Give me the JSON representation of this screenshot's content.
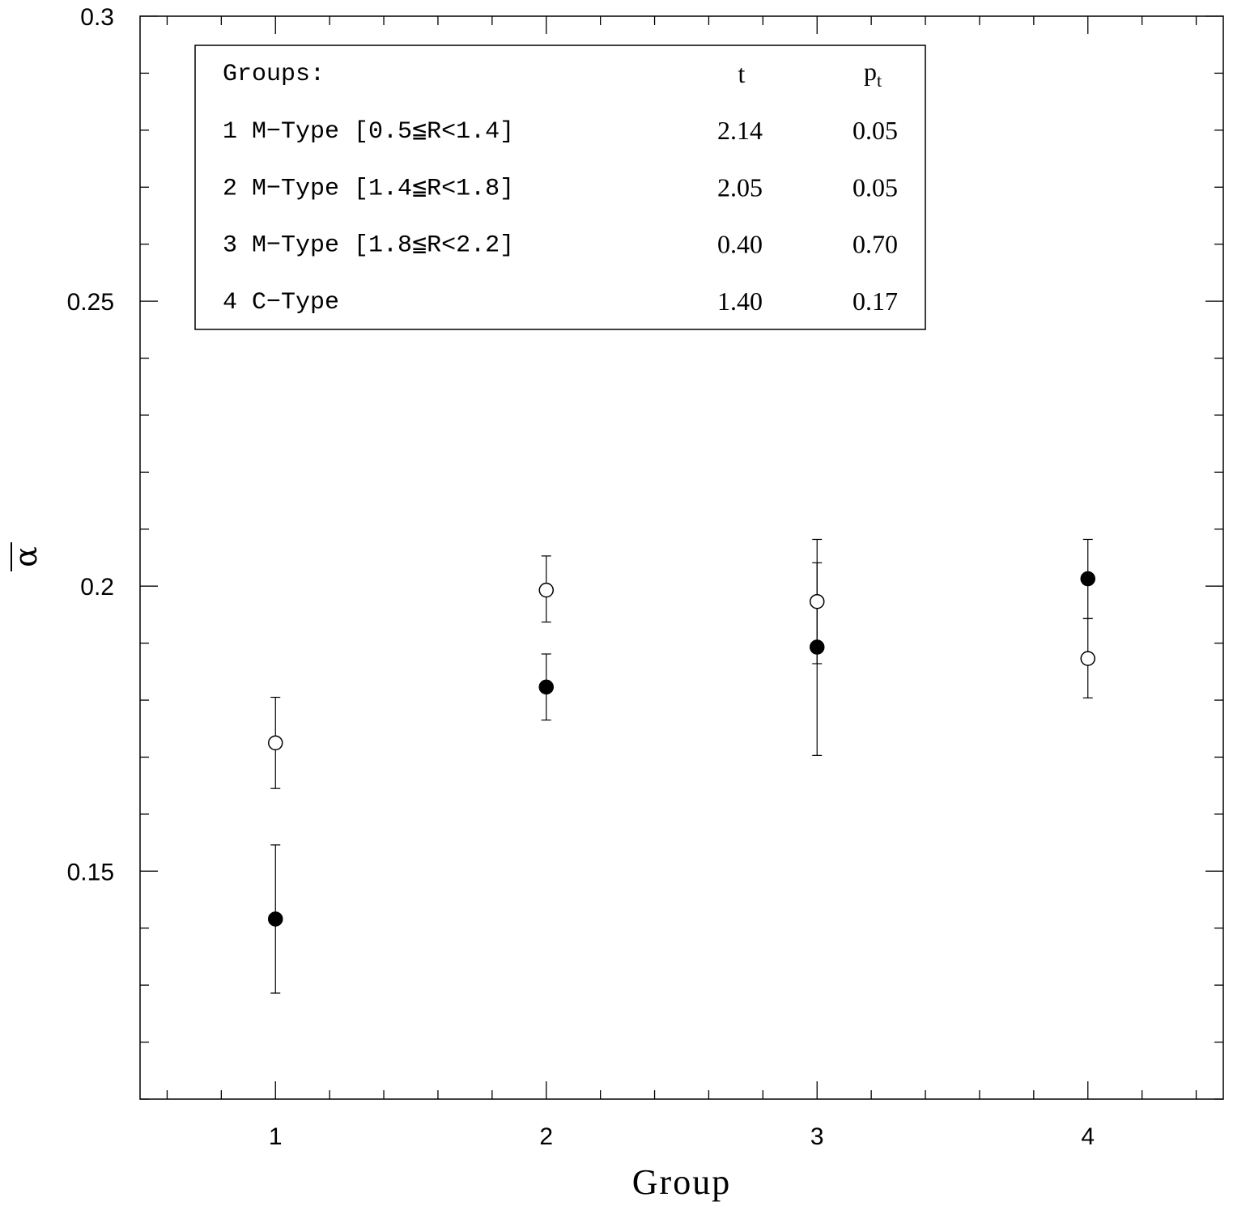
{
  "chart_data": {
    "type": "scatter",
    "xlabel": "Group",
    "ylabel": "α",
    "xlim": [
      0.5,
      4.5
    ],
    "ylim": [
      0.11,
      0.3
    ],
    "x_ticks": [
      "1",
      "2",
      "3",
      "4"
    ],
    "y_ticks": [
      "0.15",
      "0.2",
      "0.25",
      "0.3"
    ],
    "series": [
      {
        "marker": "open-circle",
        "points": [
          {
            "x": 1,
            "y": 0.1725,
            "err_low": 0.1645,
            "err_high": 0.1805
          },
          {
            "x": 2,
            "y": 0.1993,
            "err_low": 0.1937,
            "err_high": 0.2053
          },
          {
            "x": 3,
            "y": 0.1973,
            "err_low": 0.1864,
            "err_high": 0.2082
          },
          {
            "x": 4,
            "y": 0.1873,
            "err_low": 0.1804,
            "err_high": 0.1943
          }
        ]
      },
      {
        "marker": "filled-circle",
        "points": [
          {
            "x": 1,
            "y": 0.1416,
            "err_low": 0.1286,
            "err_high": 0.1546
          },
          {
            "x": 2,
            "y": 0.1823,
            "err_low": 0.1765,
            "err_high": 0.1881
          },
          {
            "x": 3,
            "y": 0.1893,
            "err_low": 0.1703,
            "err_high": 0.2041
          },
          {
            "x": 4,
            "y": 0.2013,
            "err_low": 0.1943,
            "err_high": 0.2082
          }
        ]
      }
    ],
    "legend": {
      "placement": "top-left",
      "header": {
        "label": "Groups:",
        "t": "t",
        "p": "p",
        "p_sub": "t"
      },
      "rows": [
        {
          "label": "1 M−Type [0.5≦R<1.4]",
          "t": "2.14",
          "p": "0.05"
        },
        {
          "label": "2 M−Type [1.4≦R<1.8]",
          "t": "2.05",
          "p": "0.05"
        },
        {
          "label": "3 M−Type [1.8≦R<2.2]",
          "t": "0.40",
          "p": "0.70"
        },
        {
          "label": "4 C−Type",
          "t": "1.40",
          "p": "0.17"
        }
      ]
    }
  }
}
